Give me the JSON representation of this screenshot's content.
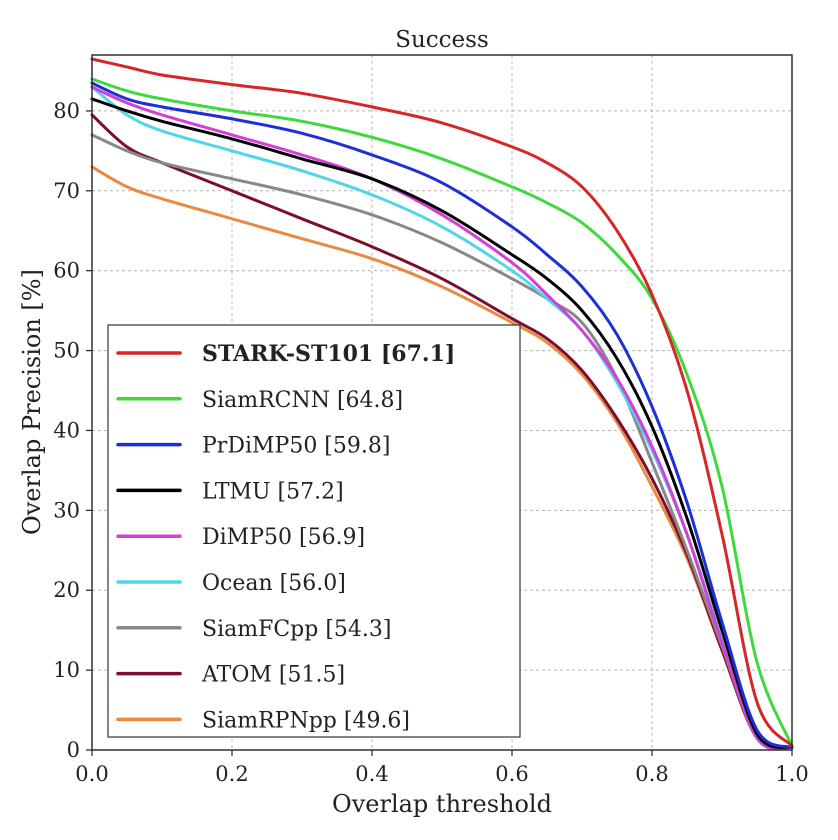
{
  "chart_data": {
    "type": "line",
    "title": "Success",
    "xlabel": "Overlap threshold",
    "ylabel": "Overlap Precision [%]",
    "xlim": [
      0.0,
      1.0
    ],
    "ylim": [
      0,
      87
    ],
    "xticks": [
      0.0,
      0.2,
      0.4,
      0.6,
      0.8,
      1.0
    ],
    "xtick_labels": [
      "0.0",
      "0.2",
      "0.4",
      "0.6",
      "0.8",
      "1.0"
    ],
    "yticks": [
      0,
      10,
      20,
      30,
      40,
      50,
      60,
      70,
      80
    ],
    "ytick_labels": [
      "0",
      "10",
      "20",
      "30",
      "40",
      "50",
      "60",
      "70",
      "80"
    ],
    "grid": true,
    "legend_position": "bottom-left",
    "series": [
      {
        "name": "STARK-ST101 [67.1]",
        "color": "#d62728",
        "bold": true,
        "x": [
          0.0,
          0.05,
          0.1,
          0.2,
          0.3,
          0.4,
          0.5,
          0.6,
          0.65,
          0.7,
          0.75,
          0.8,
          0.85,
          0.9,
          0.95,
          1.0
        ],
        "y": [
          86.5,
          85.5,
          84.5,
          83.3,
          82.2,
          80.5,
          78.5,
          75.5,
          73.5,
          70.5,
          65.0,
          57.0,
          45.0,
          27.0,
          6.0,
          0.5
        ]
      },
      {
        "name": "SiamRCNN [64.8]",
        "color": "#3ed93e",
        "bold": false,
        "x": [
          0.0,
          0.05,
          0.1,
          0.2,
          0.3,
          0.4,
          0.5,
          0.6,
          0.65,
          0.7,
          0.75,
          0.8,
          0.85,
          0.9,
          0.95,
          1.0
        ],
        "y": [
          84.0,
          82.5,
          81.5,
          80.0,
          78.7,
          76.7,
          74.0,
          70.5,
          68.5,
          66.0,
          62.0,
          56.5,
          47.0,
          33.0,
          11.0,
          0.5
        ]
      },
      {
        "name": "PrDiMP50 [59.8]",
        "color": "#1f2fd6",
        "bold": false,
        "x": [
          0.0,
          0.05,
          0.1,
          0.2,
          0.3,
          0.4,
          0.5,
          0.6,
          0.65,
          0.7,
          0.75,
          0.8,
          0.85,
          0.9,
          0.95,
          1.0
        ],
        "y": [
          83.5,
          81.5,
          80.5,
          79.0,
          77.2,
          74.5,
          71.0,
          65.5,
          62.0,
          58.0,
          52.0,
          43.0,
          31.0,
          16.0,
          2.5,
          0.3
        ]
      },
      {
        "name": "LTMU [57.2]",
        "color": "#000000",
        "bold": false,
        "x": [
          0.0,
          0.05,
          0.1,
          0.2,
          0.3,
          0.4,
          0.5,
          0.6,
          0.65,
          0.7,
          0.75,
          0.8,
          0.85,
          0.9,
          0.95,
          1.0
        ],
        "y": [
          81.5,
          80.0,
          78.7,
          76.5,
          74.0,
          71.5,
          67.5,
          62.0,
          59.0,
          55.0,
          49.0,
          40.5,
          29.0,
          15.0,
          2.0,
          0.3
        ]
      },
      {
        "name": "DiMP50 [56.9]",
        "color": "#d43fd6",
        "bold": false,
        "x": [
          0.0,
          0.05,
          0.1,
          0.2,
          0.3,
          0.4,
          0.5,
          0.6,
          0.65,
          0.7,
          0.75,
          0.8,
          0.85,
          0.9,
          0.95,
          1.0
        ],
        "y": [
          83.0,
          81.0,
          79.5,
          77.0,
          74.5,
          71.5,
          67.0,
          61.0,
          57.0,
          52.5,
          46.5,
          38.0,
          27.0,
          13.5,
          1.5,
          0.3
        ]
      },
      {
        "name": "Ocean [56.0]",
        "color": "#4fd6e8",
        "bold": false,
        "x": [
          0.0,
          0.05,
          0.1,
          0.2,
          0.3,
          0.4,
          0.5,
          0.6,
          0.65,
          0.7,
          0.75,
          0.8,
          0.85,
          0.9,
          0.95,
          1.0
        ],
        "y": [
          83.0,
          79.5,
          77.5,
          75.0,
          72.5,
          69.5,
          65.5,
          60.0,
          56.5,
          52.5,
          46.0,
          37.5,
          27.0,
          14.0,
          1.5,
          0.3
        ]
      },
      {
        "name": "SiamFCpp [54.3]",
        "color": "#888888",
        "bold": false,
        "x": [
          0.0,
          0.05,
          0.1,
          0.2,
          0.3,
          0.4,
          0.5,
          0.6,
          0.65,
          0.7,
          0.75,
          0.8,
          0.85,
          0.9,
          0.95,
          1.0
        ],
        "y": [
          77.0,
          75.0,
          73.5,
          71.5,
          69.5,
          67.0,
          63.5,
          59.0,
          56.5,
          53.5,
          46.5,
          36.0,
          25.0,
          13.0,
          1.5,
          0.3
        ]
      },
      {
        "name": "ATOM [51.5]",
        "color": "#7a1030",
        "bold": false,
        "x": [
          0.0,
          0.05,
          0.1,
          0.2,
          0.3,
          0.4,
          0.5,
          0.6,
          0.65,
          0.7,
          0.75,
          0.8,
          0.85,
          0.9,
          0.95,
          1.0
        ],
        "y": [
          79.5,
          75.5,
          73.5,
          70.0,
          66.5,
          63.0,
          59.0,
          54.0,
          51.5,
          47.5,
          41.5,
          34.0,
          24.5,
          12.5,
          1.5,
          0.3
        ]
      },
      {
        "name": "SiamRPNpp [49.6]",
        "color": "#e88a42",
        "bold": false,
        "x": [
          0.0,
          0.05,
          0.1,
          0.2,
          0.3,
          0.4,
          0.5,
          0.6,
          0.65,
          0.7,
          0.75,
          0.8,
          0.85,
          0.9,
          0.95,
          1.0
        ],
        "y": [
          73.0,
          70.5,
          69.0,
          66.5,
          64.0,
          61.5,
          58.0,
          53.5,
          51.0,
          47.0,
          41.0,
          33.0,
          24.0,
          12.5,
          1.5,
          0.3
        ]
      }
    ]
  }
}
